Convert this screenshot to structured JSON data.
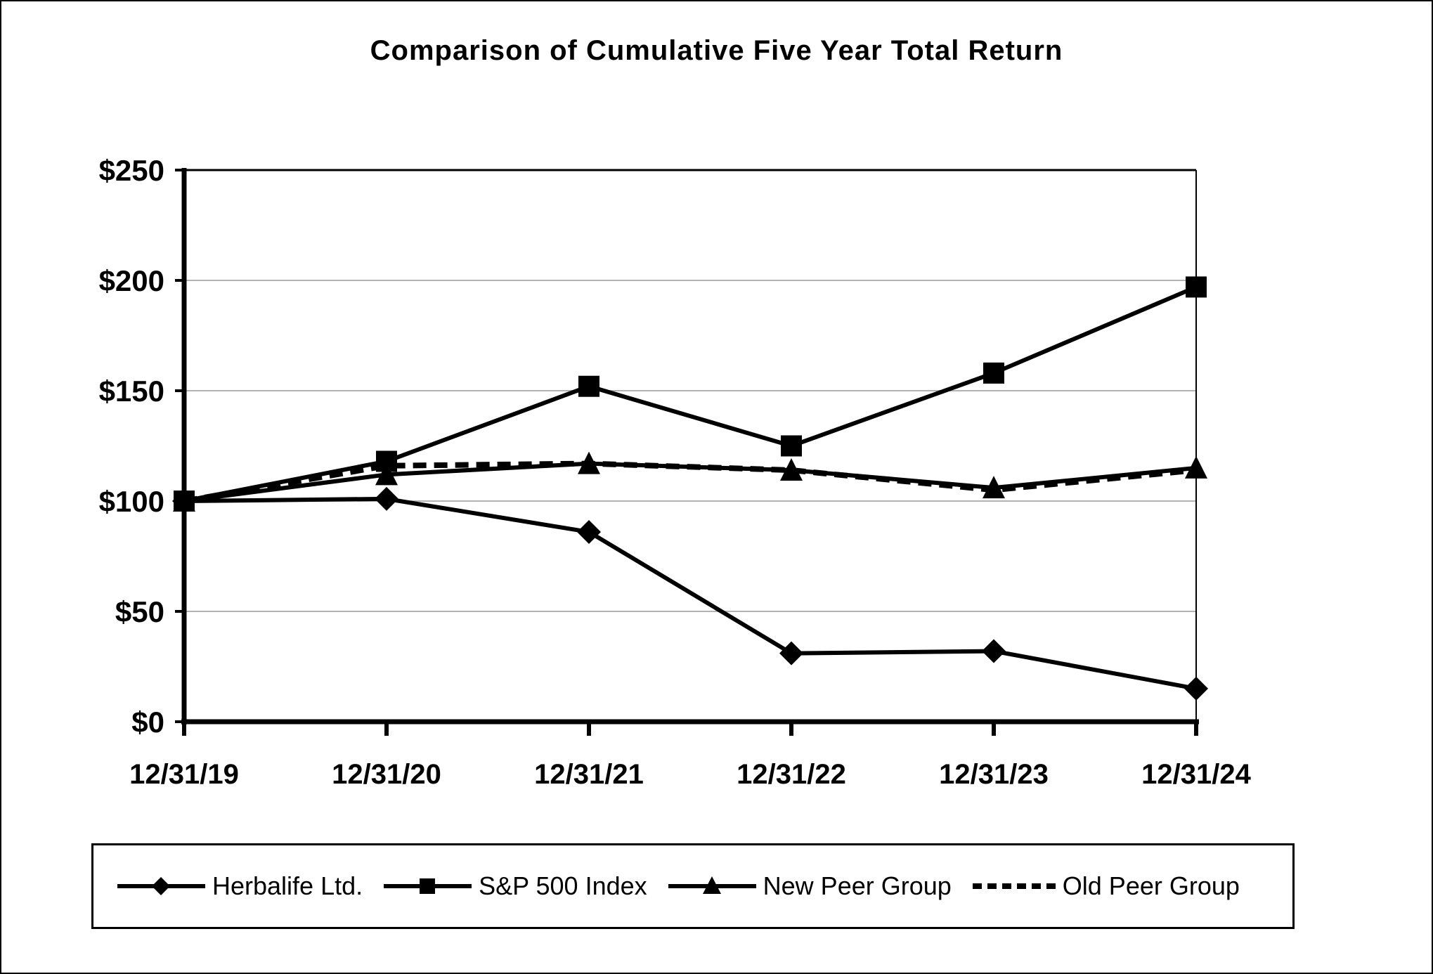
{
  "title": "Comparison of Cumulative Five Year Total Return",
  "chart_data": {
    "type": "line",
    "title": "Comparison of Cumulative Five Year Total Return",
    "categories": [
      "12/31/19",
      "12/31/20",
      "12/31/21",
      "12/31/22",
      "12/31/23",
      "12/31/24"
    ],
    "series": [
      {
        "name": "Herbalife Ltd.",
        "marker": "diamond",
        "line": "solid",
        "values": [
          100,
          101,
          86,
          31,
          32,
          15
        ]
      },
      {
        "name": "S&P 500 Index",
        "marker": "square",
        "line": "solid",
        "values": [
          100,
          118,
          152,
          125,
          158,
          197
        ]
      },
      {
        "name": "New Peer Group",
        "marker": "triangle",
        "line": "solid",
        "values": [
          100,
          112,
          117,
          114,
          106,
          115
        ]
      },
      {
        "name": "Old Peer Group",
        "marker": "none",
        "line": "dashed",
        "values": [
          100,
          116,
          117,
          114,
          105,
          114
        ]
      }
    ],
    "xlabel": "",
    "ylabel": "",
    "ylim": [
      0,
      250
    ],
    "ytick_values": [
      0,
      50,
      100,
      150,
      200,
      250
    ],
    "ytick_labels": [
      "$0",
      "$50",
      "$100",
      "$150",
      "$200",
      "$250"
    ],
    "grid": "horizontal",
    "legend_position": "bottom",
    "colors": {
      "series": "#000000",
      "grid": "#b3b3b3",
      "background": "#ffffff",
      "text": "#000000"
    }
  }
}
